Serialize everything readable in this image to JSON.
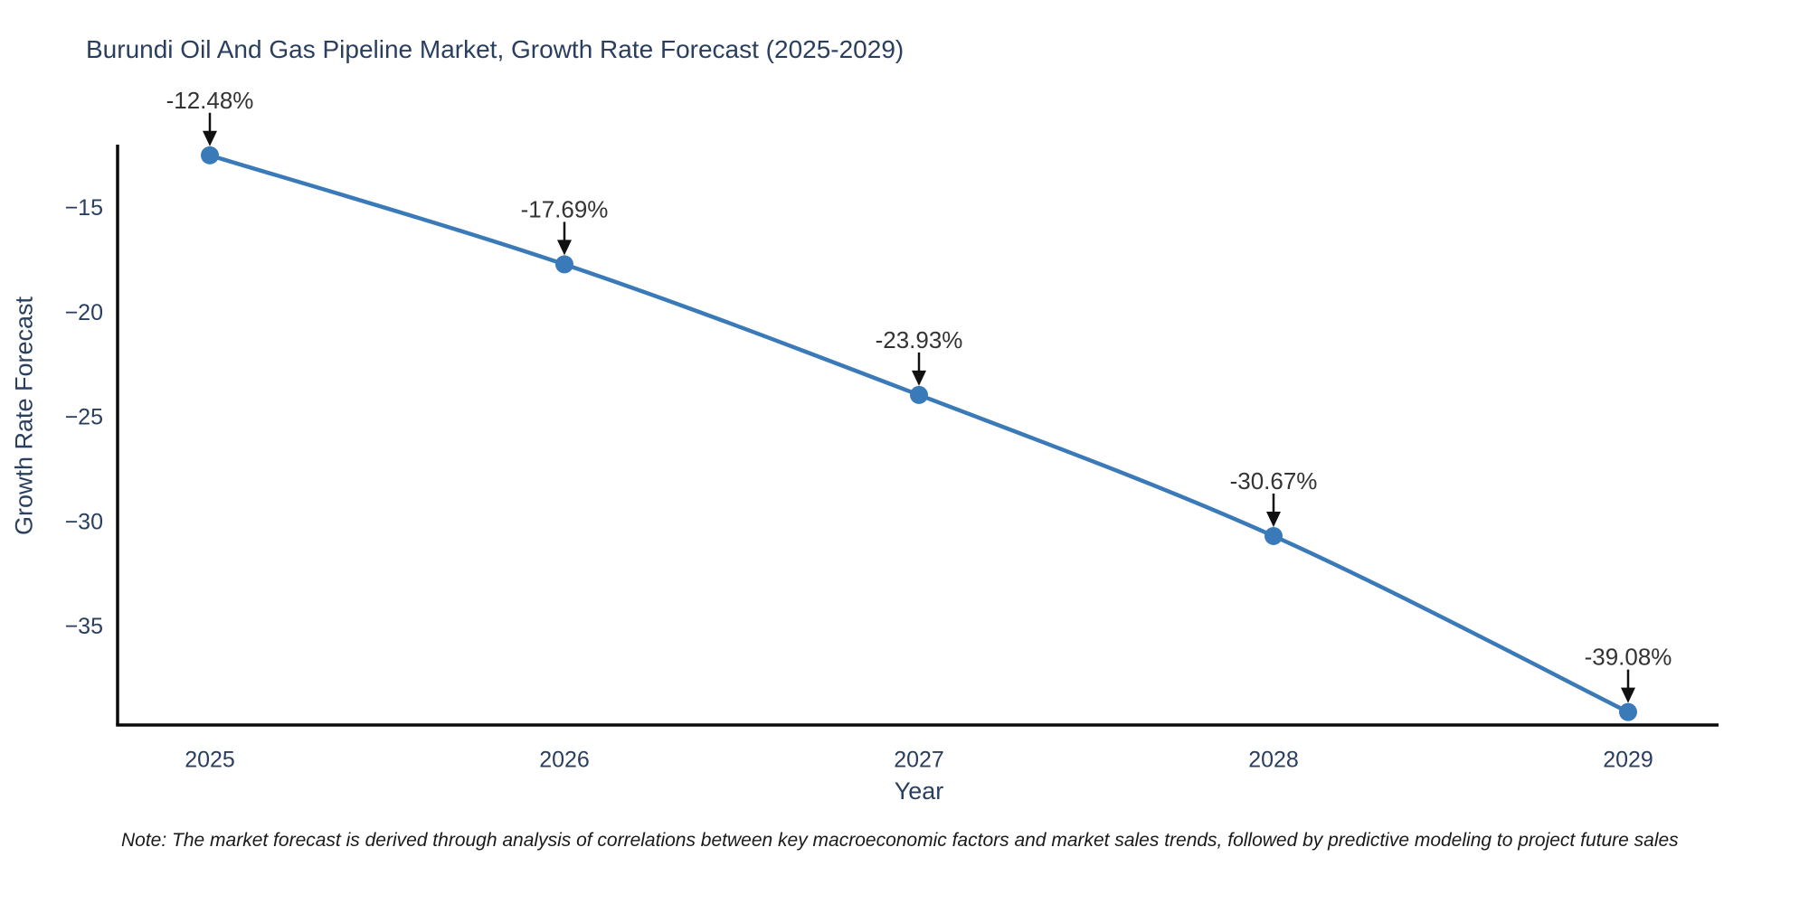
{
  "note": "Note: The market forecast is derived through analysis of correlations between key macroeconomic factors and market sales trends, followed by predictive modeling to project future sales",
  "chart_data": {
    "type": "line",
    "title": "Burundi Oil And Gas Pipeline Market, Growth Rate Forecast (2025-2029)",
    "xlabel": "Year",
    "ylabel": "Growth Rate Forecast",
    "x": [
      2025,
      2026,
      2027,
      2028,
      2029
    ],
    "x_labels": [
      "2025",
      "2026",
      "2027",
      "2028",
      "2029"
    ],
    "series": [
      {
        "name": "Growth Rate Forecast",
        "values": [
          -12.48,
          -17.69,
          -23.93,
          -30.67,
          -39.08
        ]
      }
    ],
    "point_labels": [
      "-12.48%",
      "-17.69%",
      "-23.93%",
      "-30.67%",
      "-39.08%"
    ],
    "yticks": [
      -15,
      -20,
      -25,
      -30,
      -35
    ],
    "ytick_labels": [
      "−15",
      "−20",
      "−25",
      "−30",
      "−35"
    ],
    "ylim": [
      -39.7,
      -11.97
    ],
    "line_shape": "spline",
    "grid": false,
    "legend": "none",
    "colors": {
      "line": "#3b7ab8",
      "marker": "#3b7ab8",
      "axis_line": "#0a0a0a",
      "axis_text": "#2a3f5f",
      "annotation_text": "#333333",
      "annotation_arrow": "#111111",
      "note_text": "#1a1a1a",
      "background": "#ffffff"
    }
  }
}
